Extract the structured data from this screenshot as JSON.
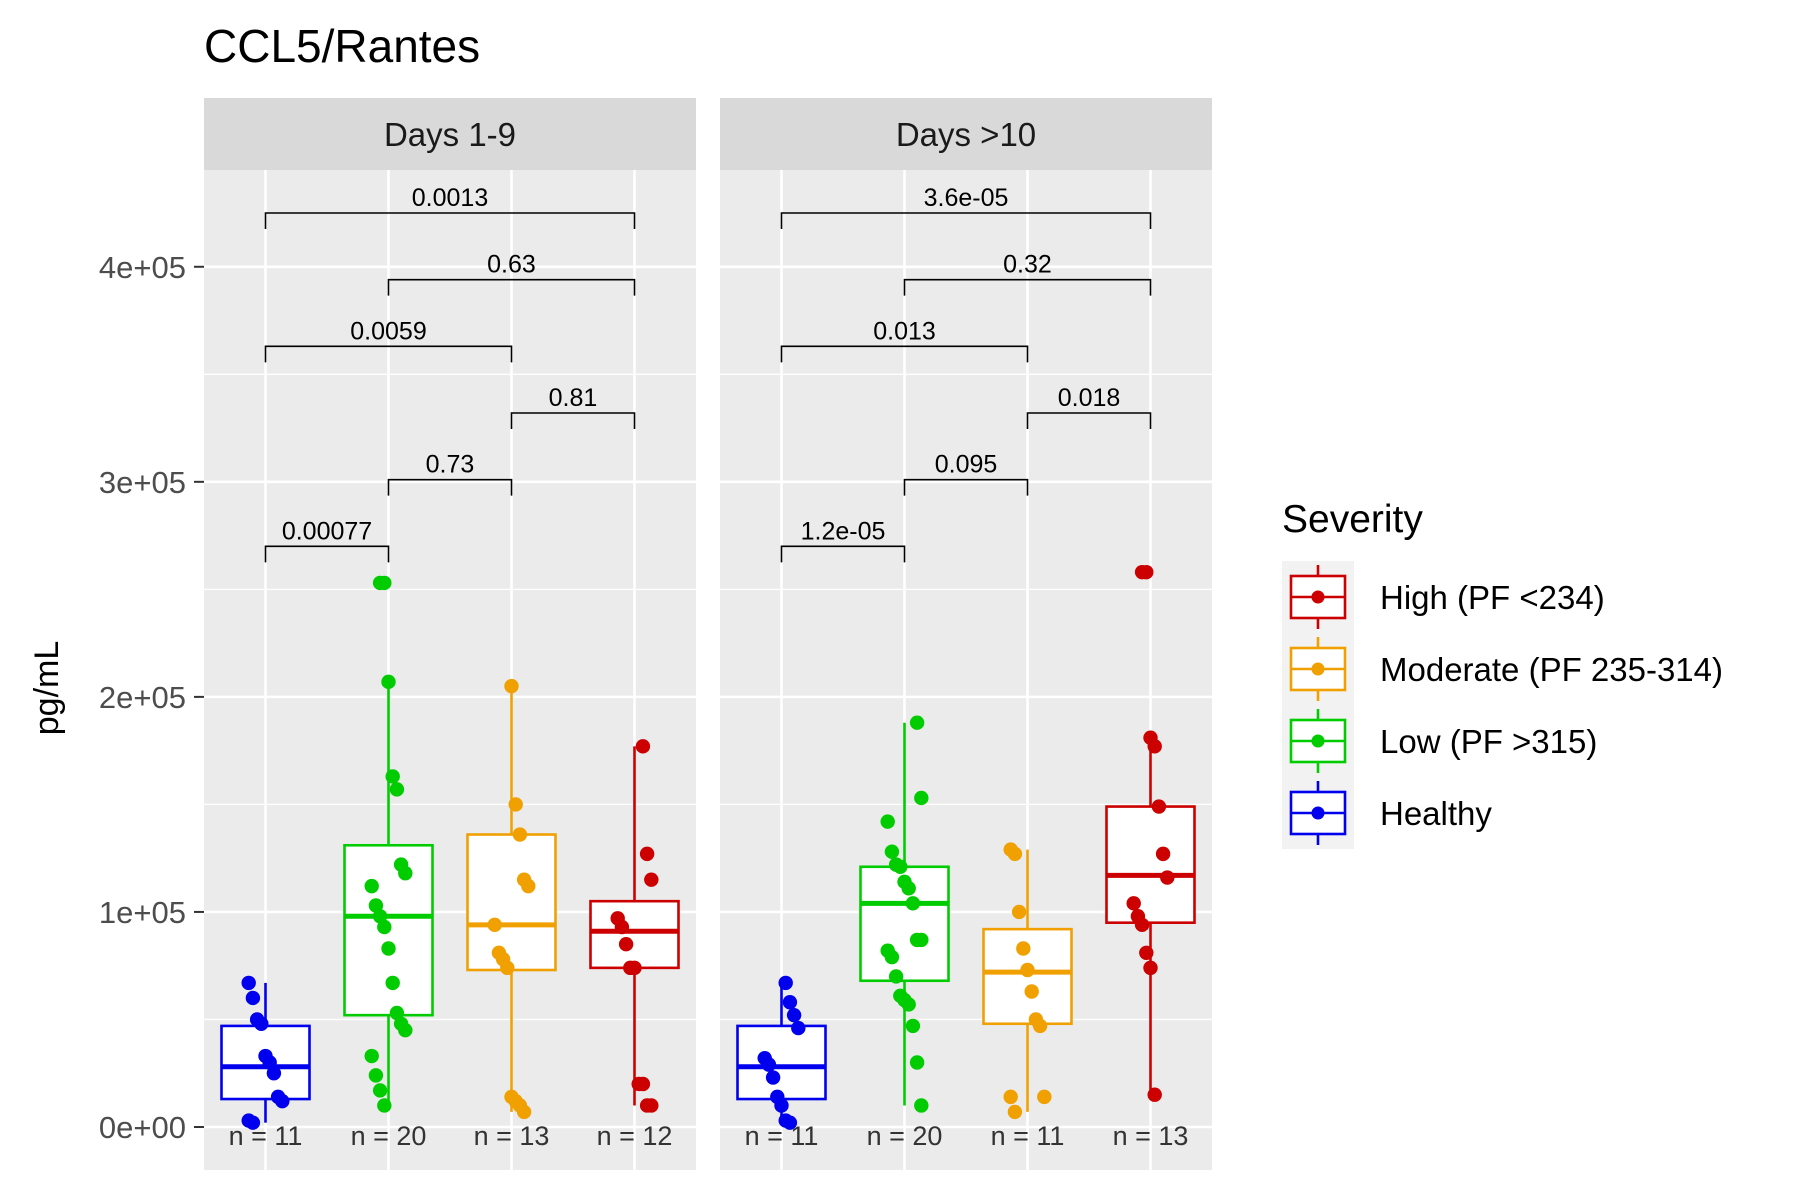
{
  "chart_data": {
    "type": "box",
    "title": "CCL5/Rantes",
    "ylabel": "pg/mL",
    "xlabel": "",
    "ylim": [
      -20000,
      445000
    ],
    "yticks": [
      0,
      100000,
      200000,
      300000,
      400000
    ],
    "ytick_labels": [
      "0e+00",
      "1e+05",
      "2e+05",
      "3e+05",
      "4e+05"
    ],
    "grid": true,
    "legend": {
      "title": "Severity",
      "placement": "right",
      "entries": [
        {
          "key": "High",
          "label": "High (PF <234)",
          "color": "#cc0000"
        },
        {
          "key": "Moderate",
          "label": "Moderate (PF 235-314)",
          "color": "#f0a000"
        },
        {
          "key": "Low",
          "label": "Low (PF >315)",
          "color": "#00cc00"
        },
        {
          "key": "Healthy",
          "label": "Healthy",
          "color": "#0000ee"
        }
      ]
    },
    "group_order": [
      "Healthy",
      "Low",
      "Moderate",
      "High"
    ],
    "panels": [
      {
        "label": "Days 1-9",
        "groups": [
          {
            "severity": "Healthy",
            "n_label": "n = 11",
            "q1": 13000,
            "median": 28000,
            "q3": 47000,
            "whisker_low": 2000,
            "whisker_high": 67000,
            "points": [
              67000,
              60000,
              50000,
              48000,
              33000,
              30000,
              25000,
              14000,
              12000,
              3000,
              2000
            ]
          },
          {
            "severity": "Low",
            "n_label": "n = 20",
            "q1": 52000,
            "median": 98000,
            "q3": 131000,
            "whisker_low": 10000,
            "whisker_high": 207000,
            "points": [
              253000,
              253000,
              207000,
              163000,
              157000,
              122000,
              118000,
              112000,
              103000,
              98000,
              93000,
              83000,
              67000,
              53000,
              48000,
              45000,
              33000,
              24000,
              17000,
              10000
            ]
          },
          {
            "severity": "Moderate",
            "n_label": "n = 13",
            "q1": 73000,
            "median": 94000,
            "q3": 136000,
            "whisker_low": 7000,
            "whisker_high": 205000,
            "points": [
              205000,
              150000,
              136000,
              115000,
              112000,
              94000,
              81000,
              78000,
              74000,
              14000,
              12000,
              10000,
              7000
            ]
          },
          {
            "severity": "High",
            "n_label": "n = 12",
            "q1": 74000,
            "median": 91000,
            "q3": 105000,
            "whisker_low": 10000,
            "whisker_high": 177000,
            "points": [
              177000,
              127000,
              115000,
              97000,
              93000,
              85000,
              74000,
              74000,
              20000,
              20000,
              10000,
              10000
            ]
          }
        ],
        "comparisons": [
          {
            "from": 0,
            "to": 1,
            "label": "0.00077",
            "y": 270000
          },
          {
            "from": 1,
            "to": 2,
            "label": "0.73",
            "y": 301000
          },
          {
            "from": 2,
            "to": 3,
            "label": "0.81",
            "y": 332000
          },
          {
            "from": 0,
            "to": 2,
            "label": "0.0059",
            "y": 363000
          },
          {
            "from": 1,
            "to": 3,
            "label": "0.63",
            "y": 394000
          },
          {
            "from": 0,
            "to": 3,
            "label": "0.0013",
            "y": 425000
          }
        ]
      },
      {
        "label": "Days >10",
        "groups": [
          {
            "severity": "Healthy",
            "n_label": "n = 11",
            "q1": 13000,
            "median": 28000,
            "q3": 47000,
            "whisker_low": 2000,
            "whisker_high": 67000,
            "points": [
              67000,
              58000,
              52000,
              46000,
              32000,
              29000,
              23000,
              14000,
              10000,
              3000,
              2000
            ]
          },
          {
            "severity": "Low",
            "n_label": "n = 20",
            "q1": 68000,
            "median": 104000,
            "q3": 121000,
            "whisker_low": 10000,
            "whisker_high": 188000,
            "points": [
              188000,
              153000,
              142000,
              128000,
              122000,
              121000,
              114000,
              111000,
              104000,
              87000,
              87000,
              82000,
              79000,
              70000,
              61000,
              59000,
              57000,
              47000,
              30000,
              10000
            ]
          },
          {
            "severity": "Moderate",
            "n_label": "n = 11",
            "q1": 48000,
            "median": 72000,
            "q3": 92000,
            "whisker_low": 7000,
            "whisker_high": 129000,
            "points": [
              129000,
              127000,
              100000,
              83000,
              73000,
              63000,
              50000,
              47000,
              14000,
              14000,
              7000
            ]
          },
          {
            "severity": "High",
            "n_label": "n = 13",
            "q1": 95000,
            "median": 117000,
            "q3": 149000,
            "whisker_low": 15000,
            "whisker_high": 181000,
            "points": [
              258000,
              258000,
              181000,
              177000,
              149000,
              127000,
              116000,
              104000,
              98000,
              94000,
              81000,
              74000,
              15000
            ]
          }
        ],
        "comparisons": [
          {
            "from": 0,
            "to": 1,
            "label": "1.2e-05",
            "y": 270000
          },
          {
            "from": 1,
            "to": 2,
            "label": "0.095",
            "y": 301000
          },
          {
            "from": 2,
            "to": 3,
            "label": "0.018",
            "y": 332000
          },
          {
            "from": 0,
            "to": 2,
            "label": "0.013",
            "y": 363000
          },
          {
            "from": 1,
            "to": 3,
            "label": "0.32",
            "y": 394000
          },
          {
            "from": 0,
            "to": 3,
            "label": "3.6e-05",
            "y": 425000
          }
        ]
      }
    ]
  }
}
